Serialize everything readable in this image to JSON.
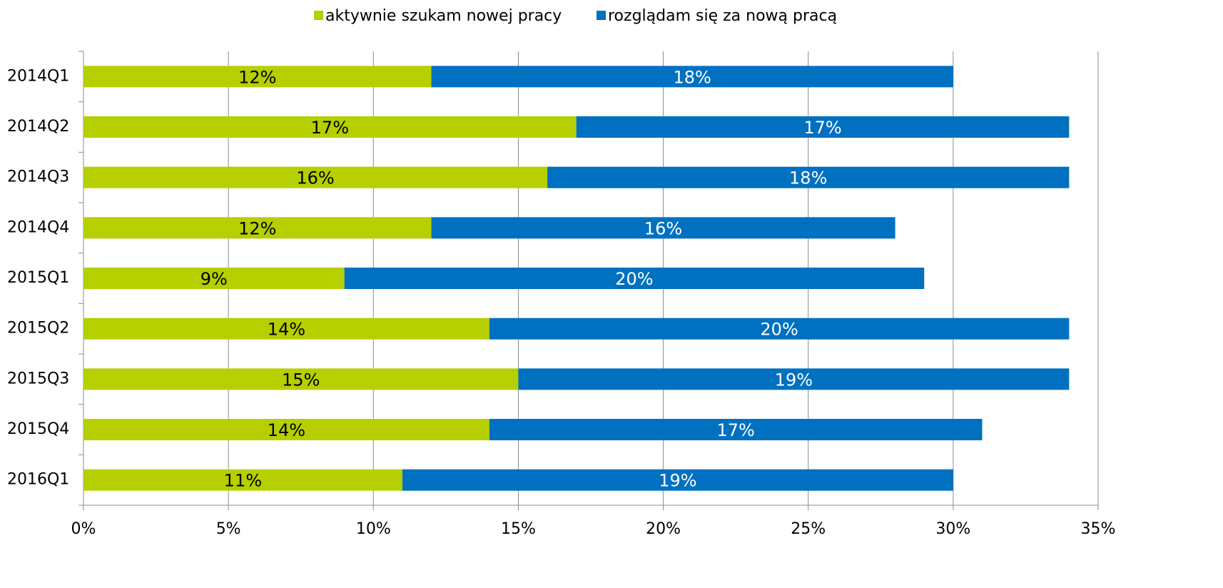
{
  "chart_data": {
    "type": "stacked-bar-horizontal",
    "categories": [
      "2014Q1",
      "2014Q2",
      "2014Q3",
      "2014Q4",
      "2015Q1",
      "2015Q2",
      "2015Q3",
      "2015Q4",
      "2016Q1"
    ],
    "series": [
      {
        "name": "aktywnie szukam nowej pracy",
        "color": "#b5cf00",
        "label_color": "#000000",
        "values": [
          12,
          17,
          16,
          12,
          9,
          14,
          15,
          14,
          11
        ],
        "value_labels": [
          "12%",
          "17%",
          "16%",
          "12%",
          "9%",
          "14%",
          "15%",
          "14%",
          "11%"
        ]
      },
      {
        "name": "rozglądam się za nową pracą",
        "color": "#0070c0",
        "label_color": "#ffffff",
        "values": [
          18,
          17,
          18,
          16,
          20,
          20,
          19,
          17,
          19
        ],
        "value_labels": [
          "18%",
          "17%",
          "18%",
          "16%",
          "20%",
          "20%",
          "19%",
          "17%",
          "19%"
        ]
      }
    ],
    "xlim": [
      0,
      35
    ],
    "xticks": [
      {
        "value": 0,
        "label": "0%"
      },
      {
        "value": 5,
        "label": "5%"
      },
      {
        "value": 10,
        "label": "10%"
      },
      {
        "value": 15,
        "label": "15%"
      },
      {
        "value": 20,
        "label": "20%"
      },
      {
        "value": 25,
        "label": "25%"
      },
      {
        "value": 30,
        "label": "30%"
      },
      {
        "value": 35,
        "label": "35%"
      }
    ],
    "grid": true,
    "legend": "top"
  }
}
